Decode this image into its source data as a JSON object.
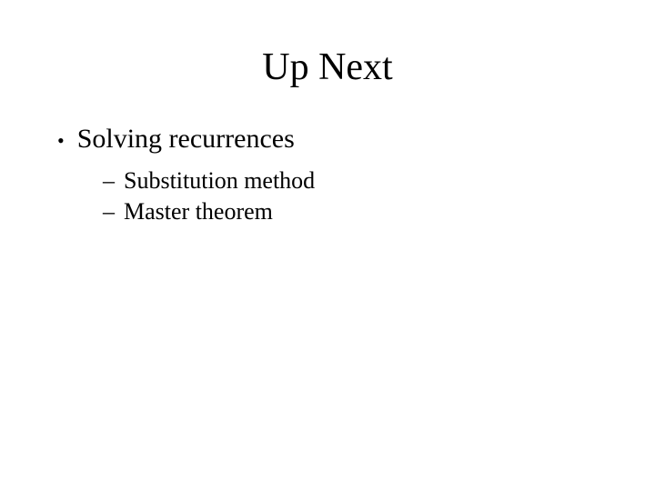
{
  "slide": {
    "title": "Up Next",
    "bullet1": {
      "symbol": "•",
      "text": "Solving recurrences"
    },
    "sub1": {
      "symbol": "–",
      "text": "Substitution method"
    },
    "sub2": {
      "symbol": "–",
      "text": "Master theorem"
    }
  },
  "styling": {
    "background_color": "#ffffff",
    "text_color": "#000000",
    "title_fontsize": 42,
    "level1_fontsize": 30,
    "level2_fontsize": 26,
    "font_family": "Times New Roman"
  }
}
